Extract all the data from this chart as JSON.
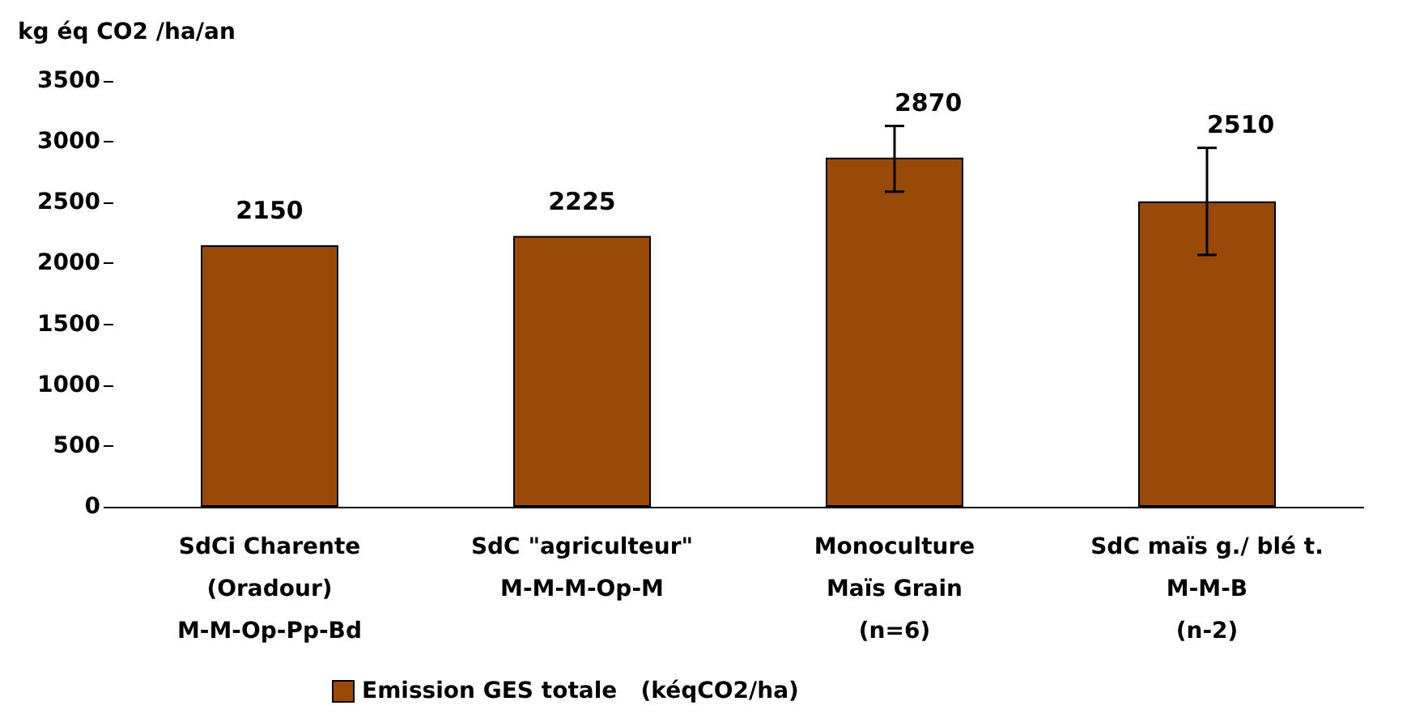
{
  "chart_data": {
    "type": "bar",
    "ylabel": "kg éq CO2 /ha/an",
    "categories": [
      "SdCi Charente\n(Oradour)\nM-M-Op-Pp-Bd",
      "SdC \"agriculteur\"\nM-M-M-Op-M",
      "Monoculture\nMaïs Grain\n(n=6)",
      "SdC maïs g./ blé t.\nM-M-B\n(n-2)"
    ],
    "series": [
      {
        "name": "Emission GES totale   (kéqCO2/ha)",
        "color": "#994a08",
        "values": [
          2150,
          2225,
          2870,
          2510
        ],
        "errors": [
          null,
          null,
          [
            2590,
            3130
          ],
          [
            2070,
            2950
          ]
        ]
      }
    ],
    "data_labels": true,
    "ylim": [
      0,
      3500
    ],
    "yticks": [
      0,
      500,
      1000,
      1500,
      2000,
      2500,
      3000,
      3500
    ],
    "grid": false,
    "legend": "bottom"
  }
}
